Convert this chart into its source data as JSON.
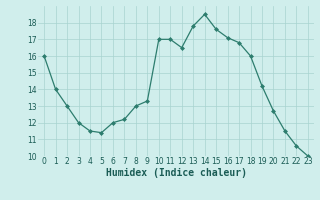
{
  "x": [
    0,
    1,
    2,
    3,
    4,
    5,
    6,
    7,
    8,
    9,
    10,
    11,
    12,
    13,
    14,
    15,
    16,
    17,
    18,
    19,
    20,
    21,
    22,
    23
  ],
  "y": [
    16,
    14,
    13,
    12,
    11.5,
    11.4,
    12,
    12.2,
    13,
    13.3,
    17,
    17,
    16.5,
    17.8,
    18.5,
    17.6,
    17.1,
    16.8,
    16,
    14.2,
    12.7,
    11.5,
    10.6,
    10
  ],
  "line_color": "#2d7d6e",
  "marker": "D",
  "marker_size": 2.0,
  "bg_color": "#d0eeec",
  "grid_color": "#a8d4d0",
  "xlabel": "Humidex (Indice chaleur)",
  "ylim": [
    10,
    19
  ],
  "xlim": [
    -0.5,
    23.5
  ],
  "yticks": [
    10,
    11,
    12,
    13,
    14,
    15,
    16,
    17,
    18
  ],
  "xticks": [
    0,
    1,
    2,
    3,
    4,
    5,
    6,
    7,
    8,
    9,
    10,
    11,
    12,
    13,
    14,
    15,
    16,
    17,
    18,
    19,
    20,
    21,
    22,
    23
  ],
  "tick_fontsize": 5.5,
  "xlabel_fontsize": 7.0,
  "linewidth": 0.9
}
